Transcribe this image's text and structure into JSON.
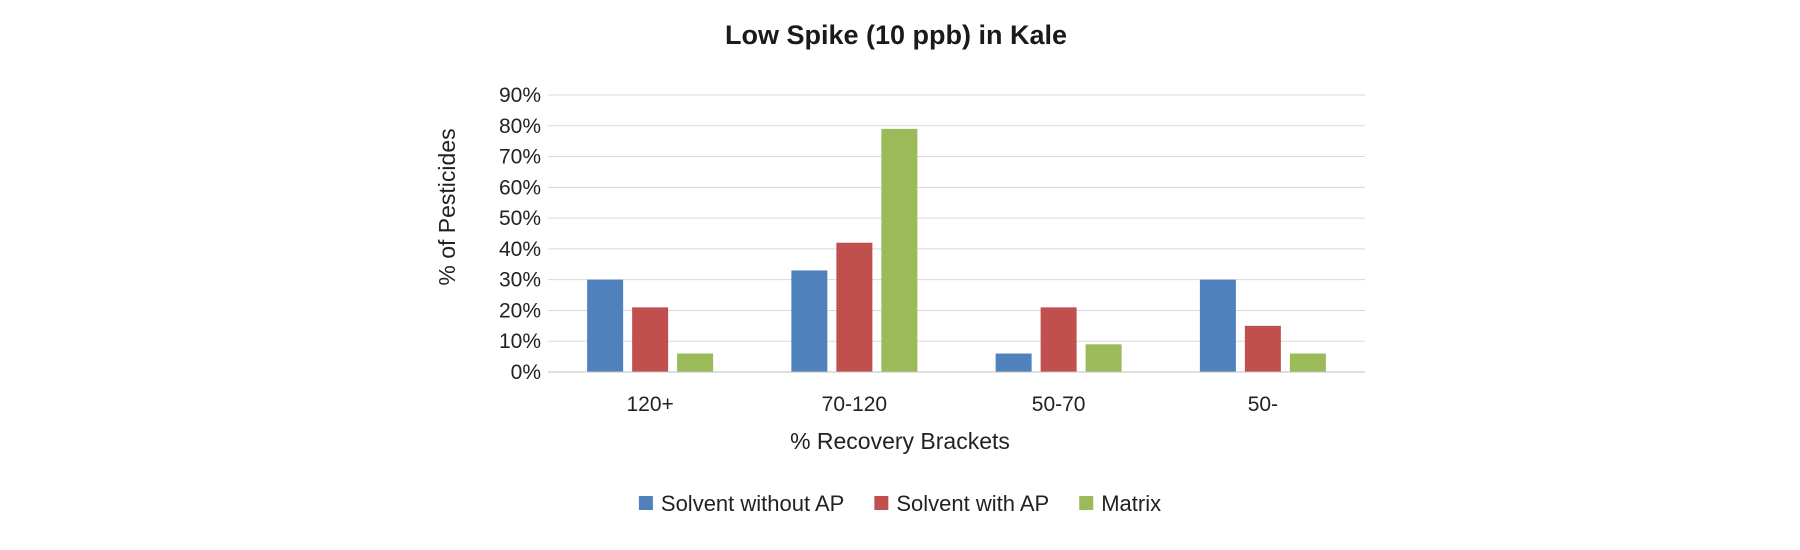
{
  "chart_data": {
    "type": "bar",
    "title": "Low Spike (10 ppb) in Kale",
    "xlabel": "% Recovery Brackets",
    "ylabel": "% of Pesticides",
    "categories": [
      "120+",
      "70-120",
      "50-70",
      "50-"
    ],
    "series": [
      {
        "name": "Solvent without AP",
        "color": "#4f81bd",
        "values": [
          30,
          33,
          6,
          30
        ]
      },
      {
        "name": "Solvent with AP",
        "color": "#c0504d",
        "values": [
          21,
          42,
          21,
          15
        ]
      },
      {
        "name": "Matrix",
        "color": "#9bbb59",
        "values": [
          6,
          79,
          9,
          6
        ]
      }
    ],
    "ylim": [
      0,
      90
    ],
    "ytick_step": 10,
    "ytick_suffix": "%",
    "grid": true,
    "legend_position": "bottom"
  }
}
